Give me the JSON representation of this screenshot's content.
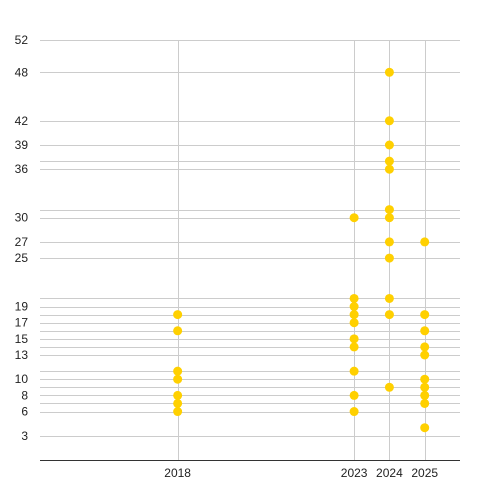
{
  "chart_data": {
    "type": "scatter",
    "title": "",
    "xlabel": "",
    "ylabel": "",
    "grid": true,
    "legend": "none",
    "color": "#FFD000",
    "x_ticks": [
      2018,
      2023,
      2024,
      2025
    ],
    "y_ticks": [
      3,
      6,
      8,
      10,
      13,
      15,
      17,
      19,
      25,
      27,
      30,
      36,
      39,
      42,
      48,
      52
    ],
    "y_gridlines": [
      3,
      6,
      7,
      8,
      9,
      10,
      11,
      13,
      14,
      15,
      16,
      17,
      18,
      19,
      20,
      25,
      27,
      30,
      31,
      36,
      37,
      39,
      42,
      48,
      52
    ],
    "xlim": [
      2014.1,
      2026
    ],
    "ylim": [
      0,
      52
    ],
    "points": [
      {
        "x": 2018,
        "y": 6
      },
      {
        "x": 2018,
        "y": 7
      },
      {
        "x": 2018,
        "y": 8
      },
      {
        "x": 2018,
        "y": 10
      },
      {
        "x": 2018,
        "y": 11
      },
      {
        "x": 2018,
        "y": 16
      },
      {
        "x": 2018,
        "y": 18
      },
      {
        "x": 2023,
        "y": 6
      },
      {
        "x": 2023,
        "y": 8
      },
      {
        "x": 2023,
        "y": 11
      },
      {
        "x": 2023,
        "y": 14
      },
      {
        "x": 2023,
        "y": 15
      },
      {
        "x": 2023,
        "y": 17
      },
      {
        "x": 2023,
        "y": 18
      },
      {
        "x": 2023,
        "y": 19
      },
      {
        "x": 2023,
        "y": 20
      },
      {
        "x": 2023,
        "y": 30
      },
      {
        "x": 2024,
        "y": 9
      },
      {
        "x": 2024,
        "y": 18
      },
      {
        "x": 2024,
        "y": 20
      },
      {
        "x": 2024,
        "y": 25
      },
      {
        "x": 2024,
        "y": 27
      },
      {
        "x": 2024,
        "y": 30
      },
      {
        "x": 2024,
        "y": 31
      },
      {
        "x": 2024,
        "y": 36
      },
      {
        "x": 2024,
        "y": 37
      },
      {
        "x": 2024,
        "y": 39
      },
      {
        "x": 2024,
        "y": 42
      },
      {
        "x": 2024,
        "y": 48
      },
      {
        "x": 2025,
        "y": 4
      },
      {
        "x": 2025,
        "y": 7
      },
      {
        "x": 2025,
        "y": 8
      },
      {
        "x": 2025,
        "y": 9
      },
      {
        "x": 2025,
        "y": 10
      },
      {
        "x": 2025,
        "y": 13
      },
      {
        "x": 2025,
        "y": 14
      },
      {
        "x": 2025,
        "y": 16
      },
      {
        "x": 2025,
        "y": 18
      },
      {
        "x": 2025,
        "y": 27
      }
    ]
  }
}
